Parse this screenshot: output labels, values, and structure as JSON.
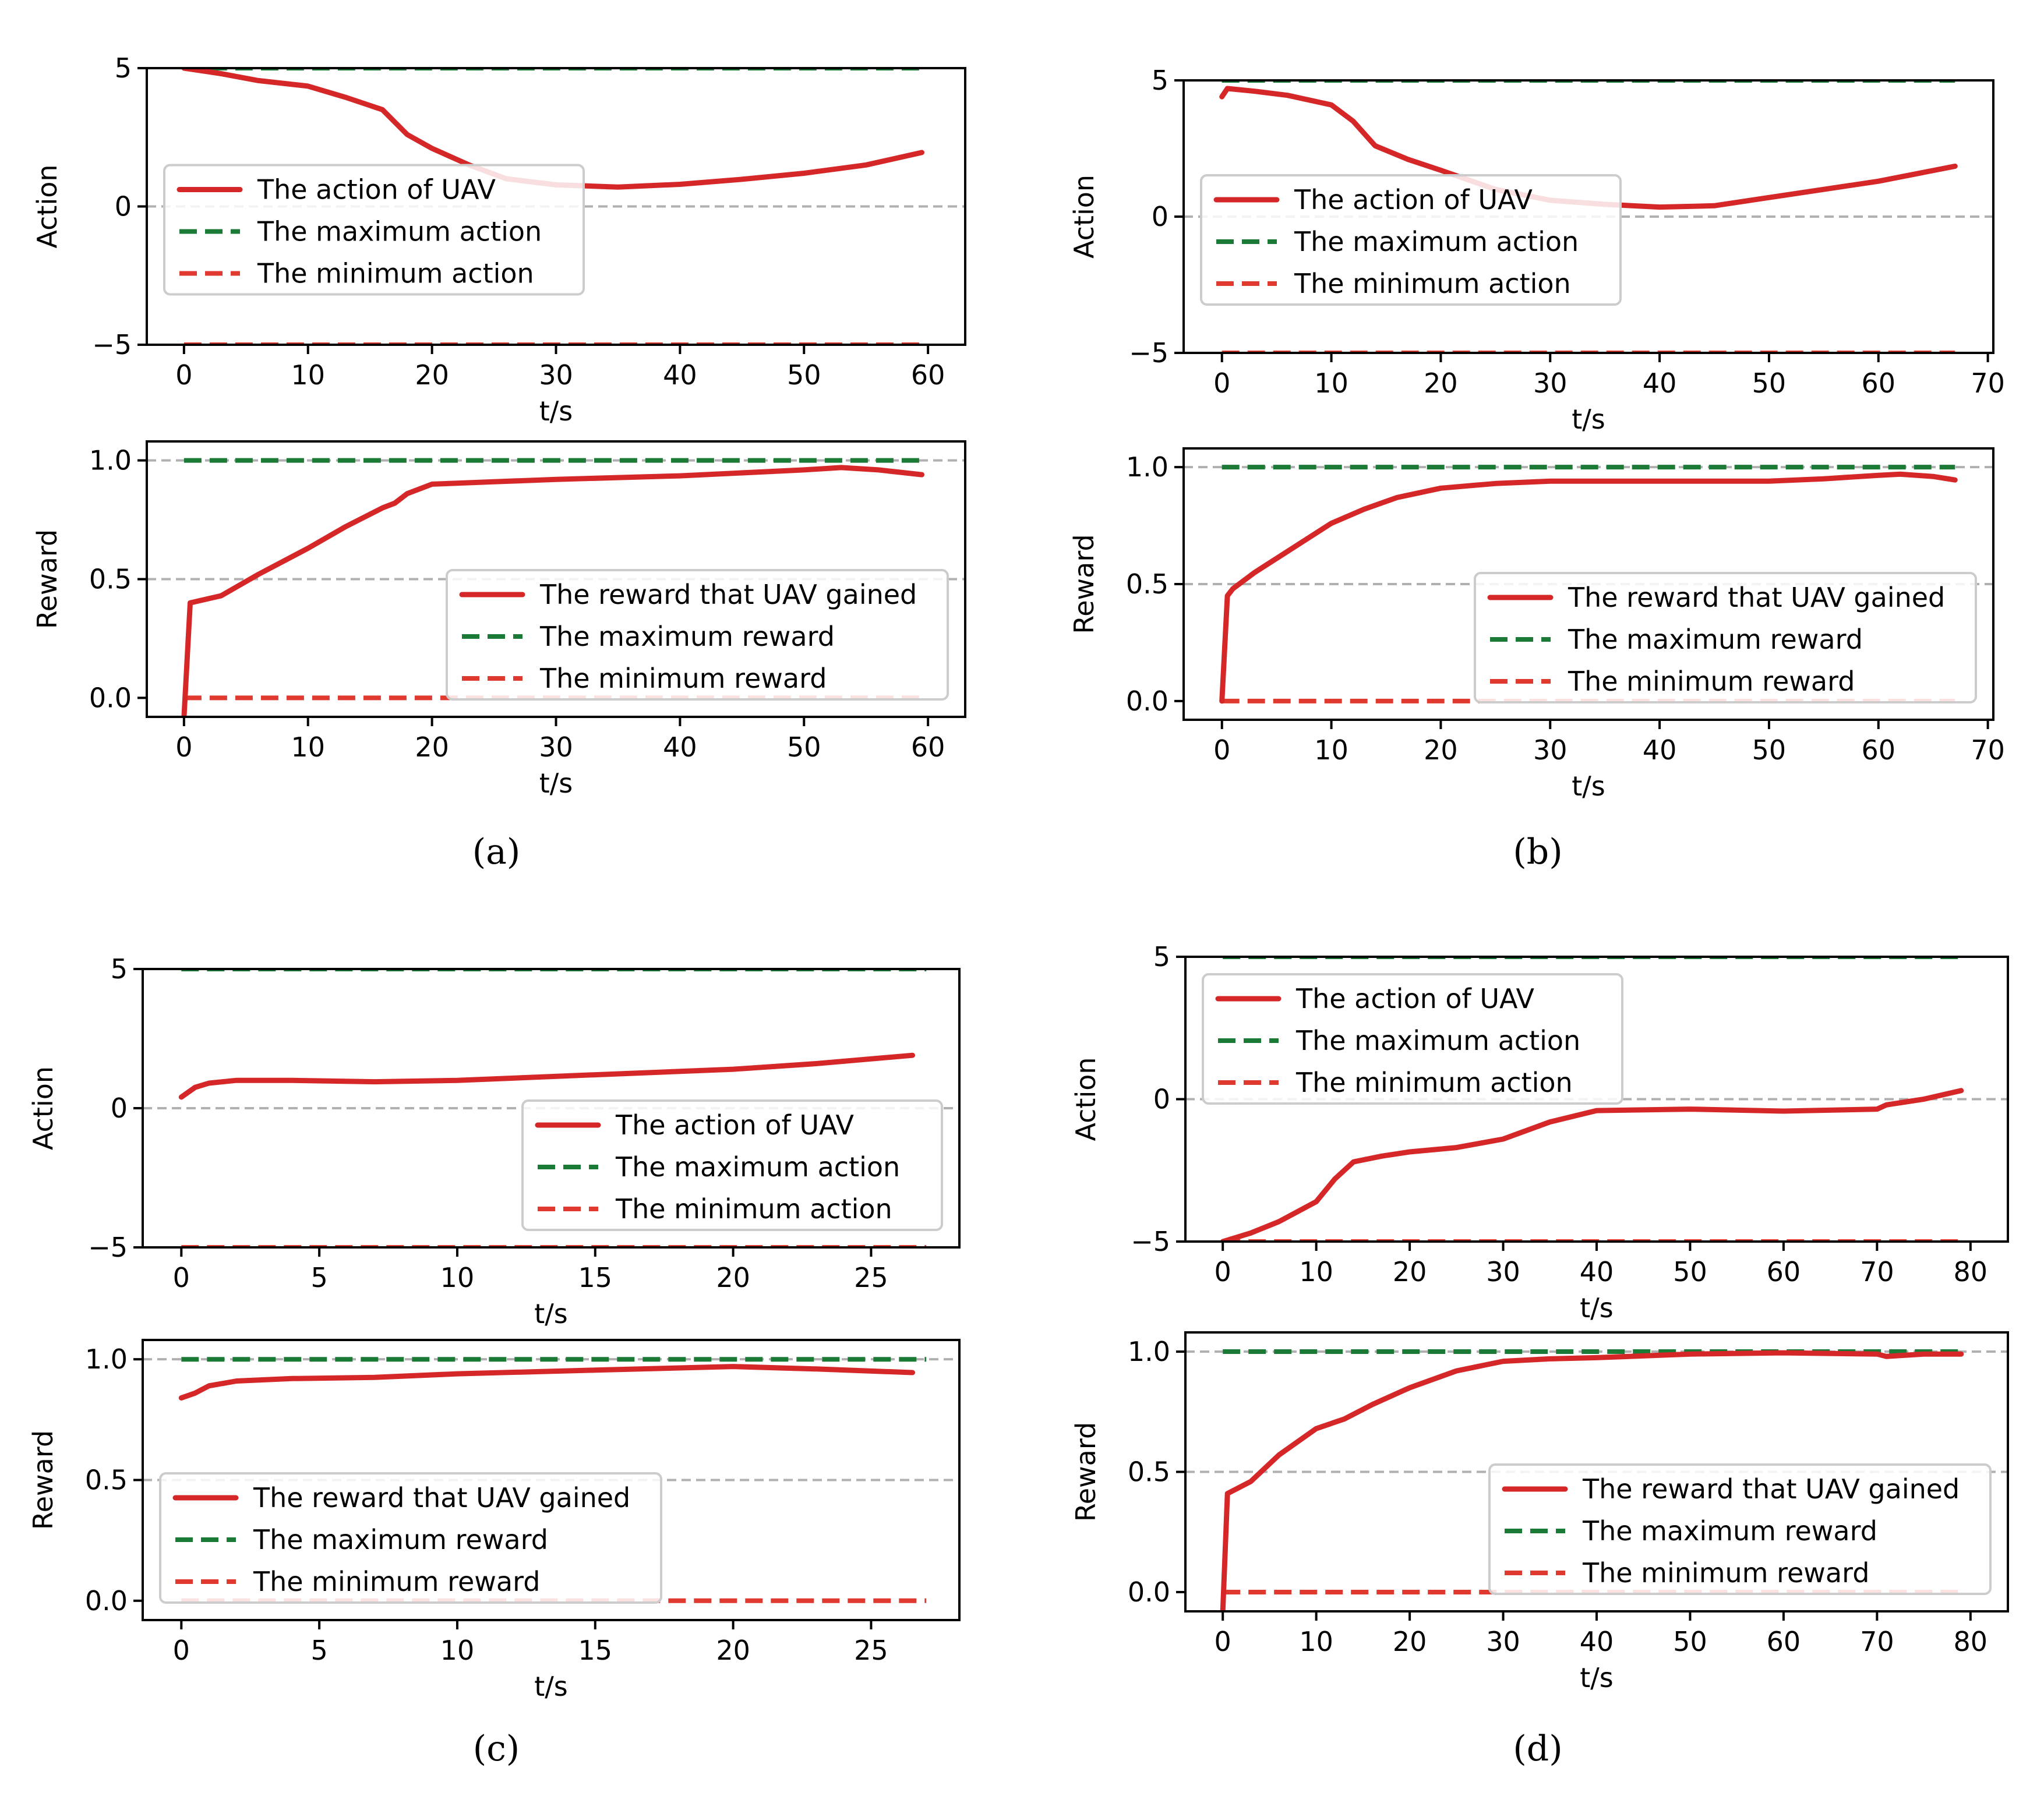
{
  "colors": {
    "uav": "#d62728",
    "max": "#1b7a35",
    "min": "#e03a30",
    "zero_line": "#b0b0b0",
    "axis": "#000000"
  },
  "chart_data": [
    {
      "panel": "a",
      "caption": "(a)",
      "subplots": [
        {
          "type": "line",
          "ylabel": "Action",
          "xlabel": "t/s",
          "xlim": [
            -3,
            63
          ],
          "ylim": [
            -5,
            5
          ],
          "xticks": [
            0,
            10,
            20,
            30,
            40,
            50,
            60
          ],
          "yticks": [
            -5,
            0,
            5
          ],
          "ytick_labels": [
            "−5",
            "0",
            "5"
          ],
          "hlines": [
            0
          ],
          "legend_position": "center-left",
          "series": [
            {
              "name": "The action of UAV",
              "style": "solid",
              "x": [
                0,
                3,
                6,
                10,
                13,
                16,
                18,
                20,
                23,
                26,
                30,
                35,
                40,
                45,
                50,
                55,
                59.5
              ],
              "y": [
                5.0,
                4.8,
                4.55,
                4.35,
                3.95,
                3.5,
                2.6,
                2.1,
                1.5,
                1.0,
                0.78,
                0.7,
                0.8,
                0.98,
                1.2,
                1.5,
                1.95
              ]
            },
            {
              "name": "The maximum action",
              "style": "dashed",
              "x": [
                0,
                59.5
              ],
              "y": [
                5,
                5
              ]
            },
            {
              "name": "The minimum action",
              "style": "dashed",
              "x": [
                0,
                59.5
              ],
              "y": [
                -5,
                -5
              ]
            }
          ]
        },
        {
          "type": "line",
          "ylabel": "Reward",
          "xlabel": "t/s",
          "xlim": [
            -3,
            63
          ],
          "ylim": [
            -0.08,
            1.08
          ],
          "xticks": [
            0,
            10,
            20,
            30,
            40,
            50,
            60
          ],
          "yticks": [
            0.0,
            0.5,
            1.0
          ],
          "ytick_labels": [
            "0.0",
            "0.5",
            "1.0"
          ],
          "hlines": [
            0.5,
            1.0
          ],
          "legend_position": "lower-right",
          "series": [
            {
              "name": "The reward that UAV gained",
              "style": "solid",
              "x": [
                0,
                0.5,
                3,
                6,
                10,
                13,
                16,
                17,
                18,
                20,
                25,
                30,
                40,
                50,
                53,
                56,
                59.5
              ],
              "y": [
                -0.08,
                0.4,
                0.43,
                0.52,
                0.63,
                0.72,
                0.8,
                0.82,
                0.86,
                0.9,
                0.91,
                0.92,
                0.935,
                0.96,
                0.97,
                0.96,
                0.94
              ]
            },
            {
              "name": "The maximum reward",
              "style": "dashed",
              "x": [
                0,
                59.5
              ],
              "y": [
                1,
                1
              ]
            },
            {
              "name": "The minimum reward",
              "style": "dashed",
              "x": [
                0,
                59.5
              ],
              "y": [
                0,
                0
              ]
            }
          ]
        }
      ]
    },
    {
      "panel": "b",
      "caption": "(b)",
      "subplots": [
        {
          "type": "line",
          "ylabel": "Action",
          "xlabel": "t/s",
          "xlim": [
            -3.5,
            70.5
          ],
          "ylim": [
            -5,
            5
          ],
          "xticks": [
            0,
            10,
            20,
            30,
            40,
            50,
            60,
            70
          ],
          "yticks": [
            -5,
            0,
            5
          ],
          "ytick_labels": [
            "−5",
            "0",
            "5"
          ],
          "hlines": [
            0
          ],
          "legend_position": "center-left",
          "series": [
            {
              "name": "The action of UAV",
              "style": "solid",
              "x": [
                0,
                0.5,
                3,
                6,
                10,
                12,
                14,
                17,
                20,
                25,
                30,
                35,
                40,
                45,
                50,
                55,
                60,
                67
              ],
              "y": [
                4.4,
                4.7,
                4.6,
                4.45,
                4.1,
                3.5,
                2.6,
                2.1,
                1.7,
                1.0,
                0.6,
                0.45,
                0.35,
                0.4,
                0.7,
                1.0,
                1.3,
                1.85
              ]
            },
            {
              "name": "The maximum action",
              "style": "dashed",
              "x": [
                0,
                67
              ],
              "y": [
                5,
                5
              ]
            },
            {
              "name": "The minimum action",
              "style": "dashed",
              "x": [
                0,
                67
              ],
              "y": [
                -5,
                -5
              ]
            }
          ]
        },
        {
          "type": "line",
          "ylabel": "Reward",
          "xlabel": "t/s",
          "xlim": [
            -3.5,
            70.5
          ],
          "ylim": [
            -0.08,
            1.08
          ],
          "xticks": [
            0,
            10,
            20,
            30,
            40,
            50,
            60,
            70
          ],
          "yticks": [
            0.0,
            0.5,
            1.0
          ],
          "ytick_labels": [
            "0.0",
            "0.5",
            "1.0"
          ],
          "hlines": [
            0.5,
            1.0
          ],
          "legend_position": "lower-right",
          "series": [
            {
              "name": "The reward that UAV gained",
              "style": "solid",
              "x": [
                0,
                0.5,
                1,
                3,
                6,
                10,
                13,
                16,
                20,
                25,
                30,
                40,
                50,
                55,
                60,
                62,
                65,
                67
              ],
              "y": [
                0.0,
                0.45,
                0.48,
                0.55,
                0.64,
                0.76,
                0.82,
                0.87,
                0.91,
                0.93,
                0.94,
                0.94,
                0.94,
                0.95,
                0.965,
                0.97,
                0.96,
                0.945
              ]
            },
            {
              "name": "The maximum reward",
              "style": "dashed",
              "x": [
                0,
                67
              ],
              "y": [
                1,
                1
              ]
            },
            {
              "name": "The minimum reward",
              "style": "dashed",
              "x": [
                0,
                67
              ],
              "y": [
                0,
                0
              ]
            }
          ]
        }
      ]
    },
    {
      "panel": "c",
      "caption": "(c)",
      "subplots": [
        {
          "type": "line",
          "ylabel": "Action",
          "xlabel": "t/s",
          "xlim": [
            -1.4,
            28.2
          ],
          "ylim": [
            -5,
            5
          ],
          "xticks": [
            0,
            5,
            10,
            15,
            20,
            25
          ],
          "yticks": [
            -5,
            0,
            5
          ],
          "ytick_labels": [
            "−5",
            "0",
            "5"
          ],
          "hlines": [
            0
          ],
          "legend_position": "lower-right",
          "series": [
            {
              "name": "The action of UAV",
              "style": "solid",
              "x": [
                0,
                0.5,
                1,
                2,
                4,
                7,
                10,
                15,
                20,
                23,
                26.5
              ],
              "y": [
                0.4,
                0.75,
                0.9,
                1.0,
                1.0,
                0.95,
                1.0,
                1.2,
                1.4,
                1.6,
                1.9
              ]
            },
            {
              "name": "The maximum action",
              "style": "dashed",
              "x": [
                0,
                27
              ],
              "y": [
                5,
                5
              ]
            },
            {
              "name": "The minimum action",
              "style": "dashed",
              "x": [
                0,
                27
              ],
              "y": [
                -5,
                -5
              ]
            }
          ]
        },
        {
          "type": "line",
          "ylabel": "Reward",
          "xlabel": "t/s",
          "xlim": [
            -1.4,
            28.2
          ],
          "ylim": [
            -0.08,
            1.08
          ],
          "xticks": [
            0,
            5,
            10,
            15,
            20,
            25
          ],
          "yticks": [
            0.0,
            0.5,
            1.0
          ],
          "ytick_labels": [
            "0.0",
            "0.5",
            "1.0"
          ],
          "hlines": [
            0.5,
            1.0
          ],
          "legend_position": "lower-left",
          "series": [
            {
              "name": "The reward that UAV gained",
              "style": "solid",
              "x": [
                0,
                0.5,
                1,
                2,
                4,
                7,
                10,
                15,
                20,
                23,
                26.5
              ],
              "y": [
                0.84,
                0.86,
                0.89,
                0.91,
                0.92,
                0.925,
                0.94,
                0.955,
                0.97,
                0.96,
                0.945
              ]
            },
            {
              "name": "The maximum reward",
              "style": "dashed",
              "x": [
                0,
                27
              ],
              "y": [
                1,
                1
              ]
            },
            {
              "name": "The minimum reward",
              "style": "dashed",
              "x": [
                0,
                27
              ],
              "y": [
                0,
                0
              ]
            }
          ]
        }
      ]
    },
    {
      "panel": "d",
      "caption": "(d)",
      "subplots": [
        {
          "type": "line",
          "ylabel": "Action",
          "xlabel": "t/s",
          "xlim": [
            -4,
            84
          ],
          "ylim": [
            -5,
            5
          ],
          "xticks": [
            0,
            10,
            20,
            30,
            40,
            50,
            60,
            70,
            80
          ],
          "yticks": [
            -5,
            0,
            5
          ],
          "ytick_labels": [
            "−5",
            "0",
            "5"
          ],
          "hlines": [
            0
          ],
          "legend_position": "upper-left",
          "series": [
            {
              "name": "The action of UAV",
              "style": "solid",
              "x": [
                0,
                3,
                6,
                10,
                12,
                14,
                17,
                20,
                25,
                30,
                35,
                40,
                50,
                60,
                70,
                71,
                75,
                79
              ],
              "y": [
                -5.0,
                -4.7,
                -4.3,
                -3.6,
                -2.8,
                -2.2,
                -2.0,
                -1.85,
                -1.7,
                -1.4,
                -0.8,
                -0.4,
                -0.35,
                -0.42,
                -0.35,
                -0.2,
                0.0,
                0.3
              ]
            },
            {
              "name": "The maximum action",
              "style": "dashed",
              "x": [
                0,
                79
              ],
              "y": [
                5,
                5
              ]
            },
            {
              "name": "The minimum action",
              "style": "dashed",
              "x": [
                0,
                79
              ],
              "y": [
                -5,
                -5
              ]
            }
          ]
        },
        {
          "type": "line",
          "ylabel": "Reward",
          "xlabel": "t/s",
          "xlim": [
            -4,
            84
          ],
          "ylim": [
            -0.08,
            1.08
          ],
          "xticks": [
            0,
            10,
            20,
            30,
            40,
            50,
            60,
            70,
            80
          ],
          "yticks": [
            0.0,
            0.5,
            1.0
          ],
          "ytick_labels": [
            "0.0",
            "0.5",
            "1.0"
          ],
          "hlines": [
            0.5,
            1.0
          ],
          "legend_position": "lower-right",
          "series": [
            {
              "name": "The reward that UAV gained",
              "style": "solid",
              "x": [
                0,
                0.5,
                3,
                6,
                10,
                13,
                16,
                20,
                25,
                30,
                35,
                40,
                50,
                60,
                70,
                71,
                75,
                79
              ],
              "y": [
                -0.08,
                0.41,
                0.46,
                0.57,
                0.68,
                0.72,
                0.78,
                0.85,
                0.92,
                0.96,
                0.97,
                0.975,
                0.99,
                0.995,
                0.99,
                0.98,
                0.99,
                0.99
              ]
            },
            {
              "name": "The maximum reward",
              "style": "dashed",
              "x": [
                0,
                79
              ],
              "y": [
                1,
                1
              ]
            },
            {
              "name": "The minimum reward",
              "style": "dashed",
              "x": [
                0,
                79
              ],
              "y": [
                0,
                0
              ]
            }
          ]
        }
      ]
    }
  ]
}
